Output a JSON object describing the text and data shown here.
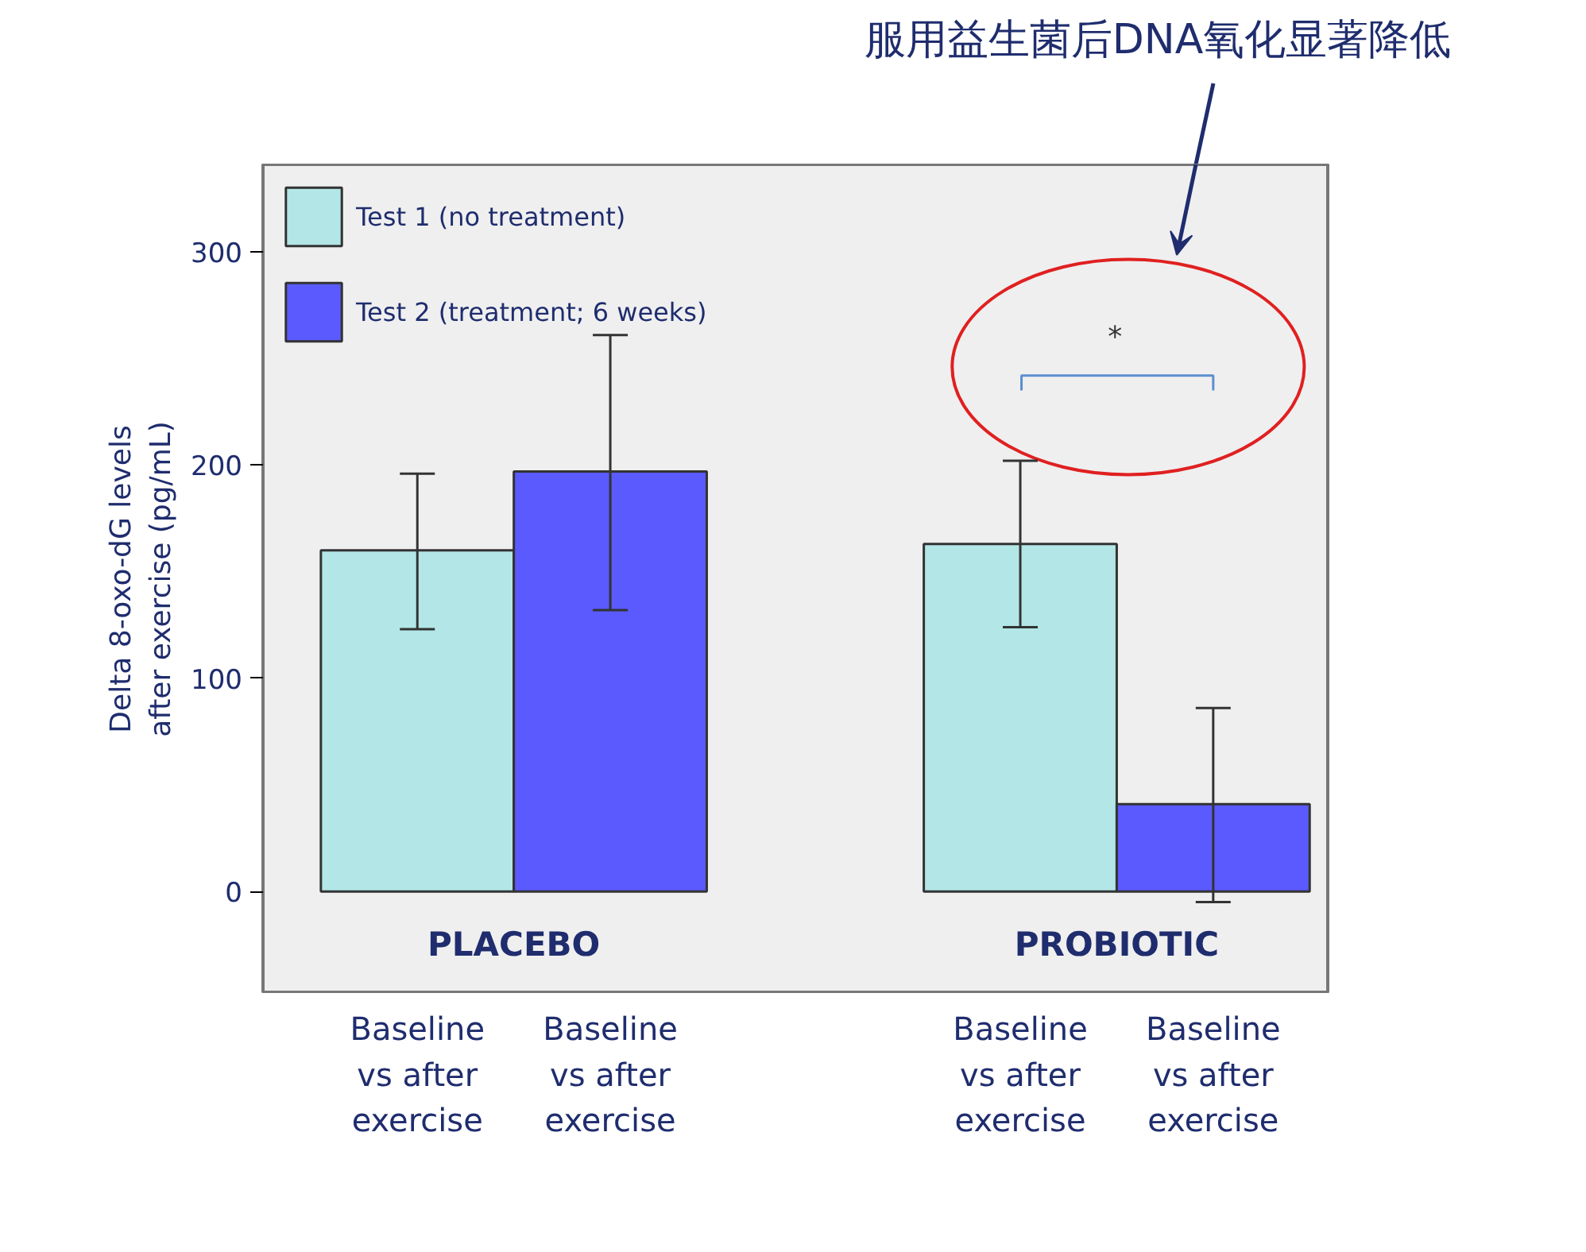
{
  "chart_data": {
    "type": "bar",
    "categories": [
      "PLACEBO",
      "PROBIOTIC"
    ],
    "ylabel": "Delta 8-oxo-dG levels\nafter exercise (pg/mL)",
    "series": [
      {
        "name": "Test 1 (no treatment)",
        "color": "#b3e6e6",
        "values": [
          160,
          163
        ],
        "errors": [
          [
            123,
            196
          ],
          [
            124,
            202
          ]
        ]
      },
      {
        "name": "Test 2 (treatment; 6 weeks)",
        "color": "#5a5aff",
        "values": [
          197,
          41
        ],
        "errors": [
          [
            132,
            261
          ],
          [
            -5,
            86
          ]
        ]
      }
    ],
    "ylim": [
      -48,
      341
    ],
    "yticks": [
      0,
      100,
      200,
      300
    ],
    "grid": false,
    "legend": "top left",
    "annotations": [
      "服用益生菌后DNA氧化显著降低",
      "*",
      "Baseline\nvs after\nexercise",
      "Baseline\nvs after\nexercise",
      "Baseline\nvs after\nexercise",
      "Baseline\nvs after\nexercise"
    ]
  }
}
